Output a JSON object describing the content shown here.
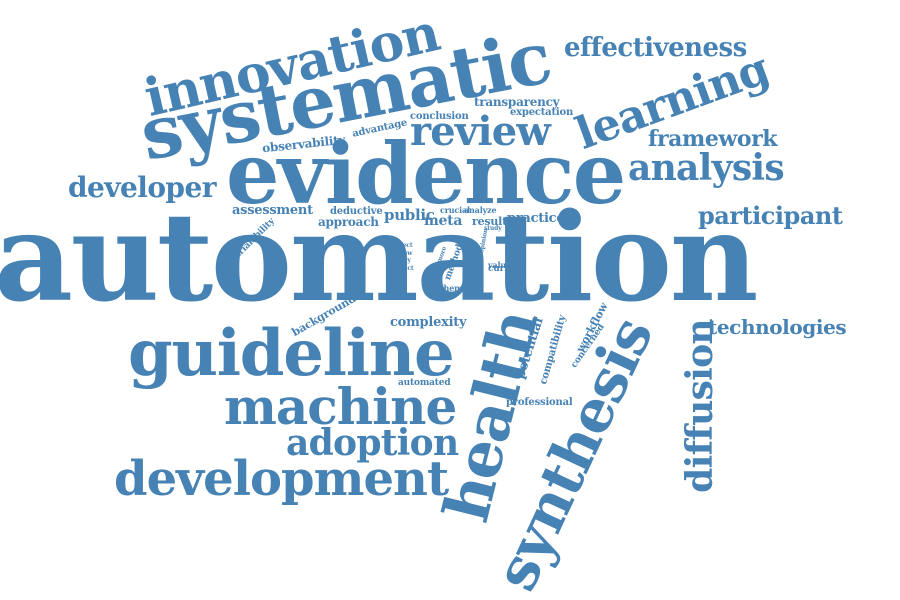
{
  "theme": {
    "word_color": "#4682b4",
    "background": "#ffffff"
  },
  "words": {
    "automation": "automation",
    "evidence": "evidence",
    "systematic": "systematic",
    "synthesis": "synthesis",
    "guideline": "guideline",
    "innovation": "innovation",
    "machine": "machine",
    "development": "development",
    "health": "health",
    "review": "review",
    "learning": "learning",
    "analysis": "analysis",
    "adoption": "adoption",
    "diffusion": "diffusion",
    "effectiveness": "effectiveness",
    "developer": "developer",
    "participant": "participant",
    "framework": "framework",
    "technologies": "technologies",
    "transparency": "transparency",
    "expectation": "expectation",
    "conclusion": "conclusion",
    "advantage": "advantage",
    "observability": "observability",
    "assessment": "assessment",
    "deductive": "deductive",
    "approach": "approach",
    "public": "public",
    "meta": "meta",
    "crucial": "crucial",
    "analyze": "analyze",
    "result": "result",
    "practice": "practice",
    "trialability": "trialability",
    "affect": "affect",
    "view": "view",
    "theory": "theory",
    "effect": "effect",
    "tool": "tool",
    "method": "method",
    "study": "study",
    "opinion": "opinion",
    "value": "value",
    "current": "current",
    "theme": "theme",
    "more": "more",
    "background": "background",
    "complexity": "complexity",
    "potential": "potential",
    "compatibility": "compatibility",
    "workflow": "workflow",
    "concerned": "concerned",
    "automated": "automated",
    "professional": "professional"
  }
}
